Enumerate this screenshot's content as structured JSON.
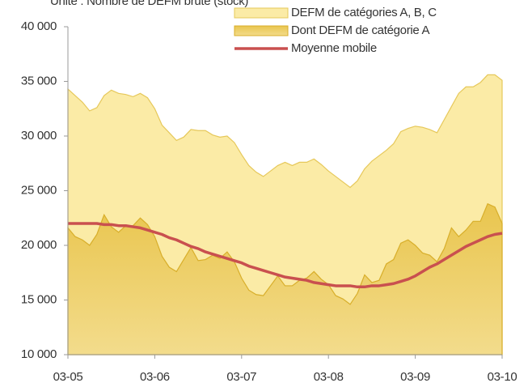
{
  "chart_data": {
    "type": "area",
    "subtitle": "Unité : Nombre de DEFM brute (stock)",
    "categories": [
      "03-05",
      null,
      null,
      null,
      null,
      null,
      null,
      null,
      null,
      null,
      null,
      null,
      "03-06",
      null,
      null,
      null,
      null,
      null,
      null,
      null,
      null,
      null,
      null,
      null,
      "03-07",
      null,
      null,
      null,
      null,
      null,
      null,
      null,
      null,
      null,
      null,
      null,
      "03-08",
      null,
      null,
      null,
      null,
      null,
      null,
      null,
      null,
      null,
      null,
      null,
      "03-09",
      null,
      null,
      null,
      null,
      null,
      null,
      null,
      null,
      null,
      null,
      null,
      "03-10"
    ],
    "series": [
      {
        "name": "DEFM de catégories A, B, C",
        "kind": "area",
        "color": "#fbeba6",
        "stroke": "#e6c85a",
        "values": [
          34300,
          33700,
          33100,
          32300,
          32600,
          33700,
          34200,
          33900,
          33800,
          33600,
          33900,
          33500,
          32500,
          31000,
          30300,
          29600,
          29900,
          30600,
          30500,
          30500,
          30100,
          29900,
          30000,
          29400,
          28300,
          27300,
          26700,
          26300,
          26800,
          27300,
          27600,
          27300,
          27600,
          27600,
          27900,
          27400,
          26800,
          26300,
          25800,
          25300,
          25900,
          27000,
          27700,
          28200,
          28700,
          29300,
          30400,
          30700,
          30900,
          30800,
          30600,
          30300,
          31500,
          32700,
          33900,
          34500,
          34500,
          34900,
          35600,
          35600,
          35100
        ]
      },
      {
        "name": "Dont DEFM de catégorie A",
        "kind": "area",
        "color": "#e9c54e",
        "stroke": "#d8ae2a",
        "values": [
          21600,
          20800,
          20500,
          20000,
          21000,
          22800,
          21700,
          21200,
          21800,
          21800,
          22500,
          21900,
          20800,
          19000,
          18000,
          17600,
          18700,
          19800,
          18600,
          18700,
          19100,
          18800,
          19400,
          18500,
          17000,
          15900,
          15500,
          15400,
          16300,
          17200,
          16300,
          16300,
          16800,
          17000,
          17600,
          16900,
          16400,
          15400,
          15100,
          14600,
          15600,
          17300,
          16600,
          16800,
          18300,
          18700,
          20200,
          20500,
          20000,
          19300,
          19100,
          18500,
          19700,
          21600,
          20800,
          21400,
          22200,
          22200,
          23800,
          23500,
          22000
        ]
      },
      {
        "name": "Moyenne mobile",
        "kind": "line",
        "color": "#c9504f",
        "values": [
          22000,
          22000,
          22000,
          22000,
          22000,
          21900,
          21900,
          21800,
          21800,
          21700,
          21600,
          21400,
          21200,
          21000,
          20700,
          20500,
          20200,
          19900,
          19700,
          19400,
          19200,
          19000,
          18800,
          18600,
          18400,
          18100,
          17900,
          17700,
          17500,
          17300,
          17100,
          17000,
          16900,
          16800,
          16600,
          16500,
          16400,
          16300,
          16300,
          16300,
          16200,
          16200,
          16300,
          16300,
          16400,
          16500,
          16700,
          16900,
          17200,
          17600,
          18000,
          18300,
          18700,
          19100,
          19500,
          19900,
          20200,
          20500,
          20800,
          21000,
          21100
        ]
      }
    ],
    "ylim": [
      10000,
      40000
    ],
    "yticks": [
      {
        "value": 10000,
        "label": "10 000"
      },
      {
        "value": 15000,
        "label": "15 000"
      },
      {
        "value": 20000,
        "label": "20 000"
      },
      {
        "value": 25000,
        "label": "25 000"
      },
      {
        "value": 30000,
        "label": "30 000"
      },
      {
        "value": 35000,
        "label": "35 000"
      },
      {
        "value": 40000,
        "label": "40 000"
      }
    ],
    "grid": false,
    "legend": "top-right"
  }
}
